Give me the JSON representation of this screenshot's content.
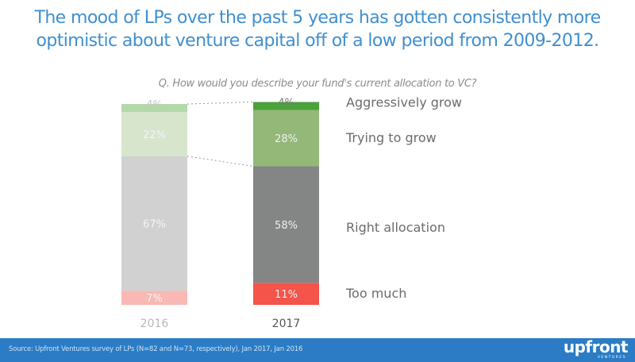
{
  "title": "The mood of LPs over the past 5 years has gotten consistently more optimistic about venture capital off of a low period from 2009-2012.",
  "title_lines": [
    "The mood of LPs over the past 5 years has gotten consistently more",
    "optimistic about venture capital off of a low period from 2009-2012."
  ],
  "footer": {
    "source": "Source: Upfront Ventures survey of LPs (N=82 and N=73, respectively), Jan 2017, Jan 2016",
    "logo_word": "upfront",
    "logo_sub": "VENTURES",
    "background": "#2b7cc5"
  },
  "chart_data": {
    "type": "bar",
    "stacked": true,
    "title": "Q. How would you describe your fund's current allocation to VC?",
    "categories": [
      "2016",
      "2017"
    ],
    "xlabel": "",
    "ylabel": "",
    "ylim": [
      0,
      100
    ],
    "grid": false,
    "legend_position": "right",
    "series": [
      {
        "name": "Too much",
        "values": [
          7,
          11
        ],
        "labels": [
          "7%",
          "11%"
        ],
        "colors": [
          "#f9b8b3",
          "#f4544a"
        ]
      },
      {
        "name": "Right allocation",
        "values": [
          67,
          58
        ],
        "labels": [
          "67%",
          "58%"
        ],
        "colors": [
          "#d0d1d0",
          "#848585"
        ]
      },
      {
        "name": "Trying to grow",
        "values": [
          22,
          28
        ],
        "labels": [
          "22%",
          "28%"
        ],
        "colors": [
          "#d7e5cd",
          "#93b878"
        ]
      },
      {
        "name": "Aggressively grow",
        "values": [
          4,
          4
        ],
        "labels": [
          "4%",
          "4%"
        ],
        "colors": [
          "#b4d9a9",
          "#4aa33a"
        ]
      }
    ],
    "category_label_colors": [
      "#b8b8b8",
      "#555555"
    ],
    "connector_lines": "dashed lines linking 2016 and 2017 segment boundaries"
  }
}
